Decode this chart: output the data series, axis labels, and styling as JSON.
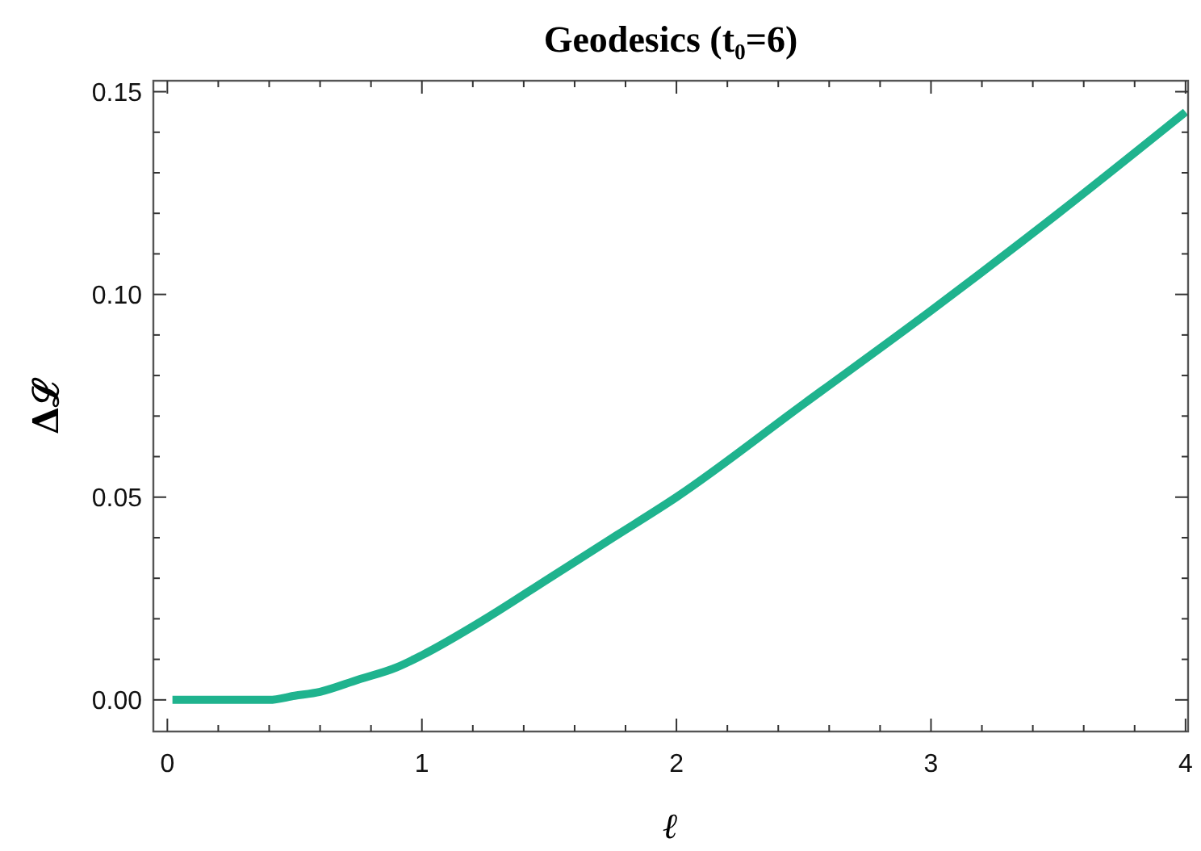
{
  "chart_data": {
    "type": "line",
    "title": "Geodesics (t₀=6)",
    "xlabel": "ℓ",
    "ylabel": "Δℒ",
    "x": [
      0.02,
      0.2,
      0.4,
      0.5,
      0.6,
      0.75,
      0.9,
      1.0,
      1.25,
      1.5,
      1.75,
      2.0,
      2.5,
      3.0,
      3.5,
      4.0
    ],
    "series": [
      {
        "color": "#1fb38e",
        "values": [
          0,
          0,
          0,
          0.001,
          0.002,
          0.005,
          0.008,
          0.011,
          0.02,
          0.03,
          0.04,
          0.05,
          0.073,
          0.096,
          0.12,
          0.145
        ]
      }
    ],
    "xlim": [
      -0.055,
      4.01
    ],
    "ylim": [
      -0.0078,
      0.1527
    ],
    "xticks": [
      0,
      {
        "value": 0.2,
        "label": null
      },
      {
        "value": 0.4,
        "label": null
      },
      {
        "value": 0.6,
        "label": null
      },
      {
        "value": 0.8,
        "label": null
      },
      1,
      {
        "value": 1.2,
        "label": null
      },
      {
        "value": 1.4,
        "label": null
      },
      {
        "value": 1.6,
        "label": null
      },
      {
        "value": 1.8,
        "label": null
      },
      2,
      {
        "value": 2.2,
        "label": null
      },
      {
        "value": 2.4,
        "label": null
      },
      {
        "value": 2.6,
        "label": null
      },
      {
        "value": 2.8,
        "label": null
      },
      3,
      {
        "value": 3.2,
        "label": null
      },
      {
        "value": 3.4,
        "label": null
      },
      {
        "value": 3.6,
        "label": null
      },
      {
        "value": 3.8,
        "label": null
      },
      4
    ],
    "yticks": [
      {
        "value": 0,
        "label": "0.00"
      },
      {
        "value": 0.01,
        "label": null
      },
      {
        "value": 0.02,
        "label": null
      },
      {
        "value": 0.03,
        "label": null
      },
      {
        "value": 0.04,
        "label": null
      },
      {
        "value": 0.05,
        "label": "0.05"
      },
      {
        "value": 0.06,
        "label": null
      },
      {
        "value": 0.07,
        "label": null
      },
      {
        "value": 0.08,
        "label": null
      },
      {
        "value": 0.09,
        "label": null
      },
      {
        "value": 0.1,
        "label": "0.10"
      },
      {
        "value": 0.11,
        "label": null
      },
      {
        "value": 0.12,
        "label": null
      },
      {
        "value": 0.13,
        "label": null
      },
      {
        "value": 0.14,
        "label": null
      },
      {
        "value": 0.15,
        "label": "0.15"
      }
    ]
  }
}
